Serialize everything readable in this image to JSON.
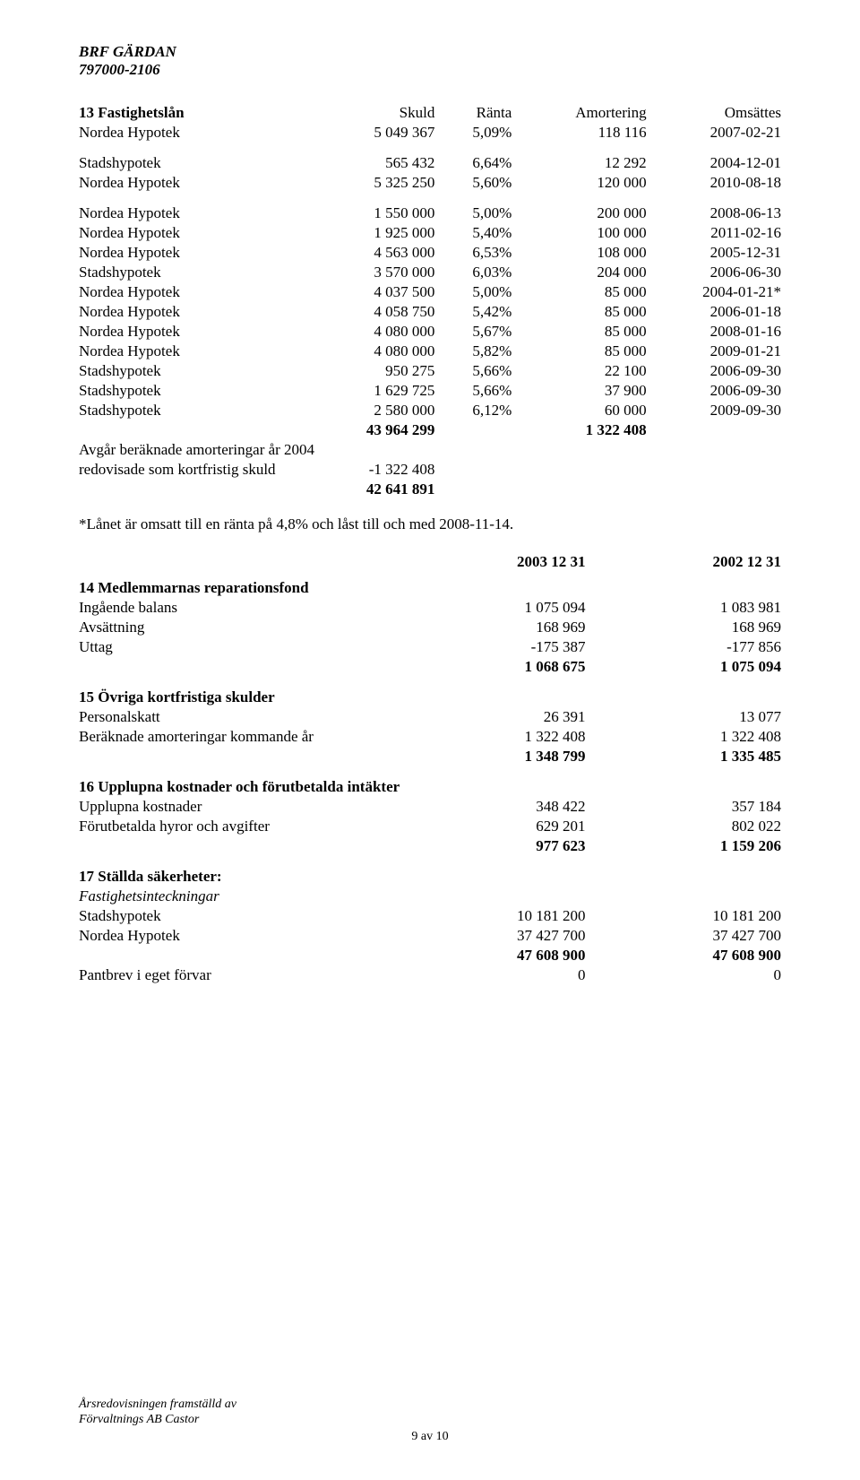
{
  "header": {
    "name": "BRF GÄRDAN",
    "orgnr": "797000-2106"
  },
  "loans": {
    "title": "13 Fastighetslån",
    "head": {
      "skuld": "Skuld",
      "ranta": "Ränta",
      "amort": "Amortering",
      "oms": "Omsättes"
    },
    "rows": [
      {
        "lender": "Nordea Hypotek",
        "skuld": "5 049 367",
        "ranta": "5,09%",
        "amort": "118 116",
        "oms": "2007-02-21"
      },
      {
        "lender": "Stadshypotek",
        "skuld": "565 432",
        "ranta": "6,64%",
        "amort": "12 292",
        "oms": "2004-12-01"
      },
      {
        "lender": "Nordea Hypotek",
        "skuld": "5 325 250",
        "ranta": "5,60%",
        "amort": "120 000",
        "oms": "2010-08-18"
      },
      {
        "lender": "Nordea Hypotek",
        "skuld": "1 550 000",
        "ranta": "5,00%",
        "amort": "200 000",
        "oms": "2008-06-13"
      },
      {
        "lender": "Nordea Hypotek",
        "skuld": "1 925 000",
        "ranta": "5,40%",
        "amort": "100 000",
        "oms": "2011-02-16"
      },
      {
        "lender": "Nordea Hypotek",
        "skuld": "4 563 000",
        "ranta": "6,53%",
        "amort": "108 000",
        "oms": "2005-12-31"
      },
      {
        "lender": "Stadshypotek",
        "skuld": "3 570 000",
        "ranta": "6,03%",
        "amort": "204 000",
        "oms": "2006-06-30"
      },
      {
        "lender": "Nordea Hypotek",
        "skuld": "4 037 500",
        "ranta": "5,00%",
        "amort": "85 000",
        "oms": "2004-01-21*"
      },
      {
        "lender": "Nordea Hypotek",
        "skuld": "4 058 750",
        "ranta": "5,42%",
        "amort": "85 000",
        "oms": "2006-01-18"
      },
      {
        "lender": "Nordea Hypotek",
        "skuld": "4 080 000",
        "ranta": "5,67%",
        "amort": "85 000",
        "oms": "2008-01-16"
      },
      {
        "lender": "Nordea Hypotek",
        "skuld": "4 080 000",
        "ranta": "5,82%",
        "amort": "85 000",
        "oms": "2009-01-21"
      },
      {
        "lender": "Stadshypotek",
        "skuld": "950 275",
        "ranta": "5,66%",
        "amort": "22 100",
        "oms": "2006-09-30"
      },
      {
        "lender": "Stadshypotek",
        "skuld": "1 629 725",
        "ranta": "5,66%",
        "amort": "37 900",
        "oms": "2006-09-30"
      },
      {
        "lender": "Stadshypotek",
        "skuld": "2 580 000",
        "ranta": "6,12%",
        "amort": "60 000",
        "oms": "2009-09-30"
      }
    ],
    "totals": {
      "skuld": "43 964 299",
      "amort": "1 322 408"
    },
    "adj_label1": "Avgår beräknade amorteringar år 2004",
    "adj_label2": " redovisade som  kortfristig skuld",
    "adj_value": "-1 322 408",
    "final_skuld": "42 641 891",
    "footnote": "*Lånet är omsatt till en ränta på 4,8% och låst till och med 2008-11-14."
  },
  "years": {
    "y1": "2003 12 31",
    "y2": "2002 12 31"
  },
  "s14": {
    "title": "14 Medlemmarnas reparationsfond",
    "rows": [
      {
        "label": "Ingående balans",
        "v1": "1 075 094",
        "v2": "1 083 981"
      },
      {
        "label": "Avsättning",
        "v1": "168 969",
        "v2": "168 969"
      },
      {
        "label": "Uttag",
        "v1": "-175 387",
        "v2": "-177 856"
      }
    ],
    "total": {
      "v1": "1 068 675",
      "v2": "1 075 094"
    }
  },
  "s15": {
    "title": "15 Övriga kortfristiga skulder",
    "rows": [
      {
        "label": "Personalskatt",
        "v1": "26 391",
        "v2": "13 077"
      },
      {
        "label": "Beräknade amorteringar kommande år",
        "v1": "1 322 408",
        "v2": "1 322 408"
      }
    ],
    "total": {
      "v1": "1 348 799",
      "v2": "1 335 485"
    }
  },
  "s16": {
    "title": "16 Upplupna kostnader och förutbetalda intäkter",
    "rows": [
      {
        "label": "Upplupna kostnader",
        "v1": "348 422",
        "v2": "357 184"
      },
      {
        "label": "Förutbetalda hyror och avgifter",
        "v1": "629 201",
        "v2": "802 022"
      }
    ],
    "total": {
      "v1": "977 623",
      "v2": "1 159 206"
    }
  },
  "s17": {
    "title": "17 Ställda säkerheter:",
    "subheading": "Fastighetsinteckningar",
    "rows": [
      {
        "label": "Stadshypotek",
        "v1": "10 181 200",
        "v2": "10 181 200"
      },
      {
        "label": "Nordea Hypotek",
        "v1": "37 427 700",
        "v2": "37 427 700"
      }
    ],
    "total": {
      "v1": "47 608 900",
      "v2": "47 608 900"
    },
    "pantbrev": {
      "label": "Pantbrev i eget förvar",
      "v1": "0",
      "v2": "0"
    }
  },
  "footer": {
    "line1": "Årsredovisningen framställd av",
    "line2": "Förvaltnings AB Castor",
    "page": "9 av 10"
  }
}
